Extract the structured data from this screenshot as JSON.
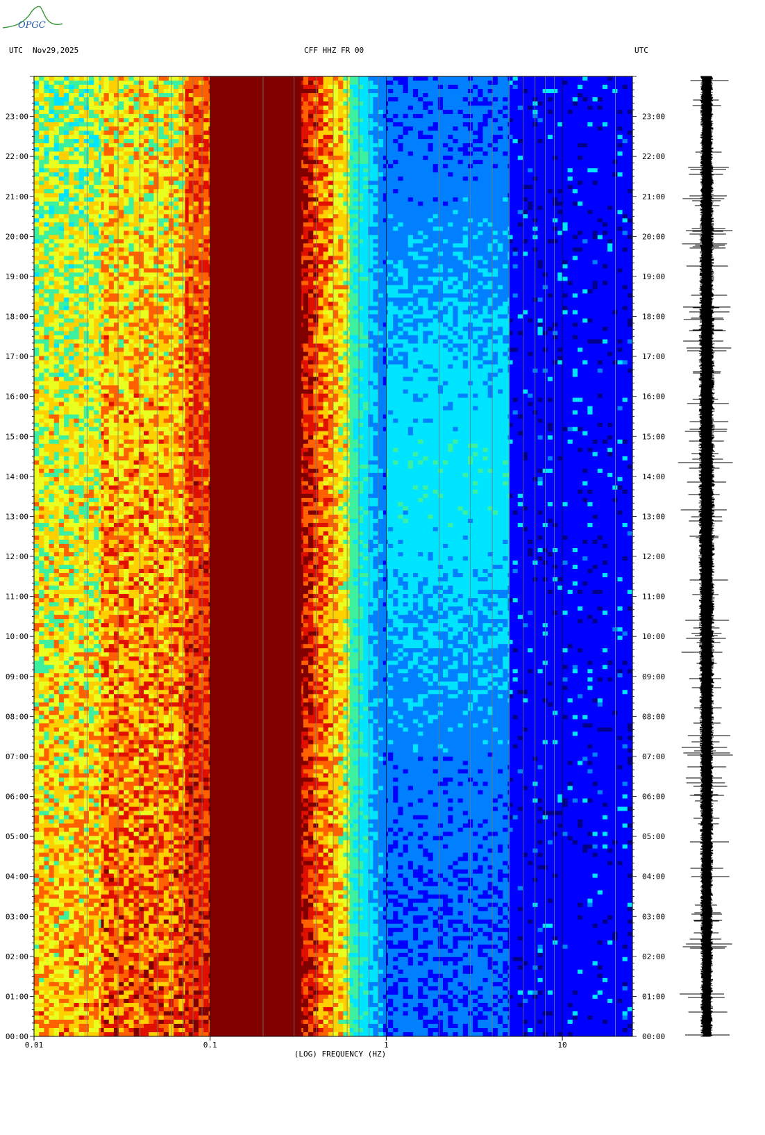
{
  "logo": {
    "text": "OPGC",
    "color": "#2a8a2a"
  },
  "header": {
    "left_tz": "UTC",
    "date": "Nov29,2025",
    "station": "CFF HHZ FR 00",
    "right_tz": "UTC"
  },
  "chart_data": {
    "type": "heatmap",
    "title": "CFF HHZ FR 00",
    "xlabel": "(LOG) FREQUENCY (HZ)",
    "ylabel": "",
    "x_scale": "log",
    "xlim": [
      0.01,
      25
    ],
    "x_ticks": [
      {
        "value": 0.01,
        "label": "0.01"
      },
      {
        "value": 0.1,
        "label": "0.1"
      },
      {
        "value": 1,
        "label": "1"
      },
      {
        "value": 10,
        "label": "10"
      }
    ],
    "y_ticks": [
      "00:00",
      "01:00",
      "02:00",
      "03:00",
      "04:00",
      "05:00",
      "06:00",
      "07:00",
      "08:00",
      "09:00",
      "10:00",
      "11:00",
      "12:00",
      "13:00",
      "14:00",
      "15:00",
      "16:00",
      "17:00",
      "18:00",
      "19:00",
      "20:00",
      "21:00",
      "22:00",
      "23:00"
    ],
    "ylim_hours": [
      0,
      24
    ],
    "colormap": [
      "#00008b",
      "#0000ff",
      "#0080ff",
      "#00e5ff",
      "#3cf0a0",
      "#e8ff20",
      "#ffd000",
      "#ff6000",
      "#e01000",
      "#800000"
    ],
    "spectral_bands": [
      {
        "f_lo": 0.01,
        "f_hi": 0.024,
        "level": "yellow-green"
      },
      {
        "f_lo": 0.024,
        "f_hi": 0.072,
        "level": "yellow-orange-red"
      },
      {
        "f_lo": 0.072,
        "f_hi": 0.1,
        "level": "red-darkred"
      },
      {
        "f_lo": 0.1,
        "f_hi": 0.33,
        "level": "dark red (max)"
      },
      {
        "f_lo": 0.33,
        "f_hi": 0.62,
        "level": "orange-red-yellow"
      },
      {
        "f_lo": 0.62,
        "f_hi": 1.0,
        "level": "cyan-blue"
      },
      {
        "f_lo": 1.0,
        "f_hi": 5.0,
        "level": "blue-cyan"
      },
      {
        "f_lo": 5.0,
        "f_hi": 25,
        "level": "blue"
      }
    ],
    "seismogram": {
      "component": "HHZ",
      "color": "#000000"
    }
  }
}
